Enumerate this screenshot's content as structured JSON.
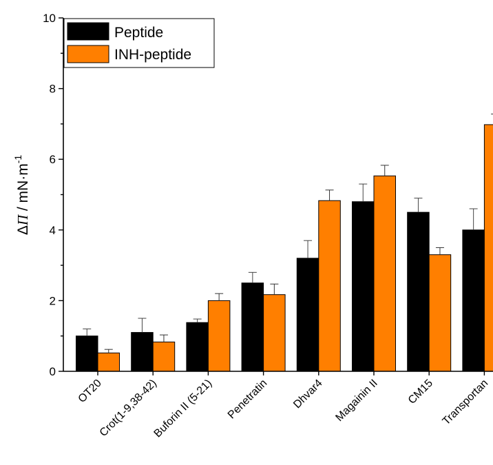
{
  "chart_data": {
    "type": "bar",
    "categories": [
      "OT20",
      "Crot(1-9,38-42)",
      "Buforin II (5-21)",
      "Penetratin",
      "Dhvar4",
      "Magainin II",
      "CM15",
      "Transportan"
    ],
    "series": [
      {
        "name": "Peptide",
        "color": "#000000",
        "values": [
          1.0,
          1.1,
          1.38,
          2.5,
          3.2,
          4.8,
          4.5,
          4.0
        ],
        "errors": [
          0.2,
          0.4,
          0.1,
          0.3,
          0.5,
          0.5,
          0.4,
          0.6
        ]
      },
      {
        "name": "INH-peptide",
        "color": "#FF7F00",
        "values": [
          0.52,
          0.83,
          2.0,
          2.17,
          4.83,
          5.53,
          3.3,
          6.98
        ],
        "errors": [
          0.1,
          0.2,
          0.2,
          0.3,
          0.3,
          0.3,
          0.2,
          0.3
        ]
      }
    ],
    "ylabel": {
      "prefix": "Δ",
      "symbol": "Π",
      "unit": " / mN·m",
      "exponent": "-1"
    },
    "ylim": [
      0,
      10
    ],
    "yticks": [
      "0",
      "2",
      "4",
      "6",
      "8",
      "10"
    ],
    "legend": "top-left",
    "grid": false
  }
}
